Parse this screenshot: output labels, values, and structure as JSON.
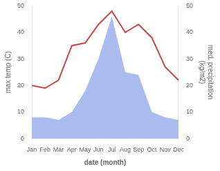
{
  "chart_data": {
    "type": "line",
    "categories": [
      "Jan",
      "Feb",
      "Mar",
      "Apr",
      "May",
      "Jun",
      "Jul",
      "Aug",
      "Sep",
      "Oct",
      "Nov",
      "Dec"
    ],
    "series": [
      {
        "type": "area",
        "color": "#aabbee",
        "axis": "y2",
        "values": [
          8,
          8,
          7,
          10,
          18,
          30,
          46,
          25,
          24,
          10,
          8,
          7
        ]
      },
      {
        "type": "line",
        "color": "#cc4444",
        "values": [
          20,
          19,
          22,
          35,
          36,
          43,
          48,
          40,
          43,
          38,
          27,
          22
        ]
      }
    ],
    "xlabel": "date (month)",
    "ylabel": "max temp (C)",
    "y2label": "med. precipitation\n(kg/m2)",
    "ylim": [
      0,
      50
    ],
    "yticks": [
      0,
      10,
      20,
      30,
      40,
      50
    ],
    "y2lim": [
      0,
      50
    ],
    "y2ticks": [
      0,
      10,
      20,
      30,
      40,
      50
    ],
    "grid": false
  }
}
